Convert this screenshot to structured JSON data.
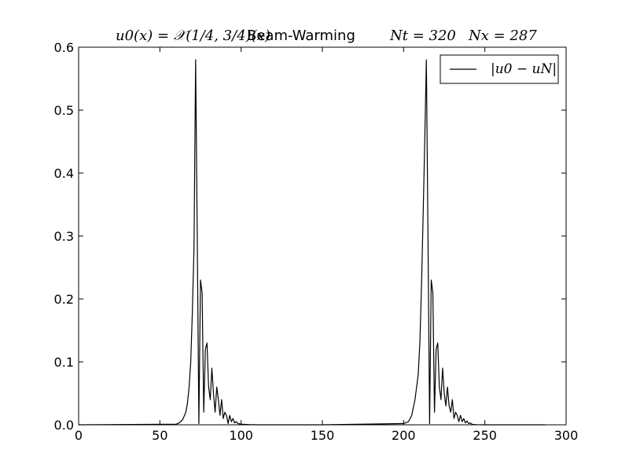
{
  "chart_data": {
    "type": "line",
    "title": {
      "math_initial": "u0(x) = 𝒳(1/4, 3/4)(x)",
      "method": "Beam-Warming",
      "nt": "Nt = 320",
      "nx": "Nx = 287"
    },
    "xlabel": "",
    "ylabel": "",
    "xlim": [
      0,
      300
    ],
    "ylim": [
      0,
      0.6
    ],
    "xticks": [
      "0",
      "50",
      "100",
      "150",
      "200",
      "250",
      "300"
    ],
    "yticks": [
      "0.0",
      "0.1",
      "0.2",
      "0.3",
      "0.4",
      "0.5",
      "0.6"
    ],
    "grid": false,
    "legend": {
      "position": "top-right",
      "entries": [
        "|u0 − uN|"
      ]
    },
    "series": [
      {
        "name": "|u0 − uN|",
        "color": "#000000",
        "x": [
          0,
          60,
          62,
          64,
          66,
          67,
          68,
          69,
          70,
          71,
          72,
          73,
          74,
          75,
          76,
          77,
          78,
          79,
          80,
          81,
          82,
          83,
          84,
          85,
          86,
          87,
          88,
          89,
          90,
          91,
          92,
          93,
          94,
          95,
          96,
          97,
          98,
          100,
          105,
          110,
          150,
          200,
          203,
          205,
          207,
          209,
          210,
          211,
          212,
          213,
          214,
          215,
          216,
          217,
          218,
          219,
          220,
          221,
          222,
          223,
          224,
          225,
          226,
          227,
          228,
          229,
          230,
          231,
          232,
          233,
          234,
          235,
          236,
          237,
          238,
          239,
          240,
          241,
          242,
          243,
          245,
          250,
          287
        ],
        "y": [
          0,
          0.001,
          0.003,
          0.008,
          0.02,
          0.035,
          0.06,
          0.1,
          0.18,
          0.28,
          0.58,
          0.3,
          0.002,
          0.23,
          0.21,
          0.02,
          0.12,
          0.13,
          0.06,
          0.04,
          0.09,
          0.05,
          0.02,
          0.06,
          0.04,
          0.015,
          0.04,
          0.01,
          0.02,
          0.015,
          0.002,
          0.015,
          0.005,
          0.01,
          0.003,
          0.005,
          0.002,
          0.001,
          0.0003,
          0,
          0,
          0.002,
          0.005,
          0.015,
          0.04,
          0.08,
          0.13,
          0.22,
          0.33,
          0.45,
          0.58,
          0.3,
          0.002,
          0.23,
          0.21,
          0.02,
          0.12,
          0.13,
          0.06,
          0.04,
          0.09,
          0.05,
          0.03,
          0.06,
          0.03,
          0.02,
          0.04,
          0.01,
          0.02,
          0.015,
          0.005,
          0.015,
          0.005,
          0.01,
          0.003,
          0.006,
          0.002,
          0.003,
          0.001,
          0.0005,
          0.0002,
          0,
          0
        ]
      }
    ]
  }
}
